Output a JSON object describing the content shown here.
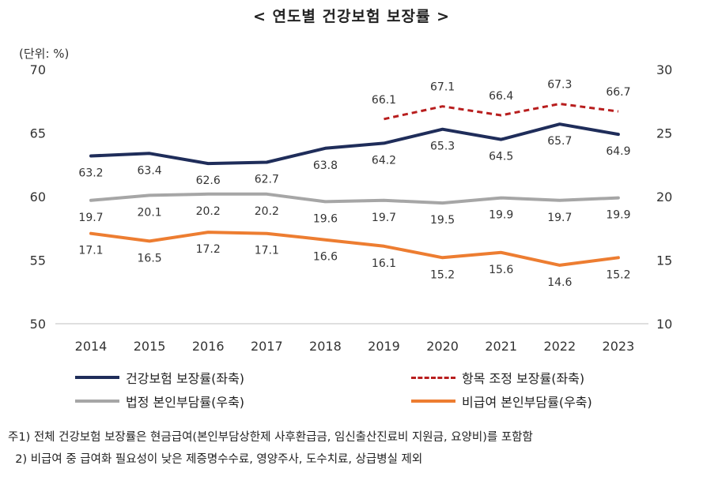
{
  "chart_data": {
    "type": "line",
    "title": "< 연도별 건강보험 보장률 >",
    "unit_label": "(단위: %)",
    "x": [
      "2014",
      "2015",
      "2016",
      "2017",
      "2018",
      "2019",
      "2020",
      "2021",
      "2022",
      "2023"
    ],
    "y_left": {
      "lim": [
        50,
        70
      ],
      "ticks": [
        "70",
        "65",
        "60",
        "55",
        "50"
      ]
    },
    "y_right": {
      "lim": [
        10,
        30
      ],
      "ticks": [
        "30",
        "25",
        "20",
        "15",
        "10"
      ]
    },
    "grid": false,
    "legend_position": "bottom",
    "series": [
      {
        "name": "건강보험 보장률(좌축)",
        "axis": "left",
        "color": "#1f2d5a",
        "style": "solid",
        "label_position": "below",
        "values": [
          63.2,
          63.4,
          62.6,
          62.7,
          63.8,
          64.2,
          65.3,
          64.5,
          65.7,
          64.9
        ],
        "labels": [
          "63.2",
          "63.4",
          "62.6",
          "62.7",
          "63.8",
          "64.2",
          "65.3",
          "64.5",
          "65.7",
          "64.9"
        ]
      },
      {
        "name": "항목 조정 보장률(좌축)",
        "axis": "left",
        "color": "#b81e1e",
        "style": "dashed",
        "label_position": "above",
        "values": [
          null,
          null,
          null,
          null,
          null,
          66.1,
          67.1,
          66.4,
          67.3,
          66.7
        ],
        "labels": [
          "",
          "",
          "",
          "",
          "",
          "66.1",
          "67.1",
          "66.4",
          "67.3",
          "66.7"
        ]
      },
      {
        "name": "법정 본인부담률(우축)",
        "axis": "right",
        "color": "#a6a6a6",
        "style": "solid",
        "label_position": "below",
        "values": [
          19.7,
          20.1,
          20.2,
          20.2,
          19.6,
          19.7,
          19.5,
          19.9,
          19.7,
          19.9
        ],
        "labels": [
          "19.7",
          "20.1",
          "20.2",
          "20.2",
          "19.6",
          "19.7",
          "19.5",
          "19.9",
          "19.7",
          "19.9"
        ]
      },
      {
        "name": "비급여 본인부담률(우축)",
        "axis": "right",
        "color": "#ed7d31",
        "style": "solid",
        "label_position": "below",
        "values": [
          17.1,
          16.5,
          17.2,
          17.1,
          16.6,
          16.1,
          15.2,
          15.6,
          14.6,
          15.2
        ],
        "labels": [
          "17.1",
          "16.5",
          "17.2",
          "17.1",
          "16.6",
          "16.1",
          "15.2",
          "15.6",
          "14.6",
          "15.2"
        ]
      }
    ]
  },
  "notes": [
    "주1) 전체 건강보험 보장률은 현금급여(본인부담상한제 사후환급금, 임신출산진료비 지원금, 요양비)를 포함함",
    "  2) 비급여 중 급여화 필요성이 낮은 제증명수수료, 영양주사, 도수치료, 상급병실 제외"
  ]
}
